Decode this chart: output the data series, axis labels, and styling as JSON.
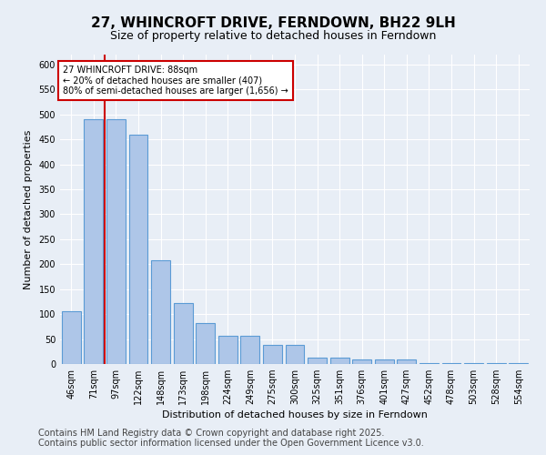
{
  "title": "27, WHINCROFT DRIVE, FERNDOWN, BH22 9LH",
  "subtitle": "Size of property relative to detached houses in Ferndown",
  "xlabel": "Distribution of detached houses by size in Ferndown",
  "ylabel": "Number of detached properties",
  "footer": "Contains HM Land Registry data © Crown copyright and database right 2025.\nContains public sector information licensed under the Open Government Licence v3.0.",
  "categories": [
    "46sqm",
    "71sqm",
    "97sqm",
    "122sqm",
    "148sqm",
    "173sqm",
    "198sqm",
    "224sqm",
    "249sqm",
    "275sqm",
    "300sqm",
    "325sqm",
    "351sqm",
    "376sqm",
    "401sqm",
    "427sqm",
    "452sqm",
    "478sqm",
    "503sqm",
    "528sqm",
    "554sqm"
  ],
  "values": [
    105,
    490,
    490,
    460,
    207,
    122,
    82,
    57,
    57,
    38,
    38,
    13,
    13,
    10,
    10,
    10,
    2,
    2,
    2,
    2,
    2
  ],
  "bar_color": "#aec6e8",
  "bar_edge_color": "#5b9bd5",
  "annotation_text_line1": "27 WHINCROFT DRIVE: 88sqm",
  "annotation_text_line2": "← 20% of detached houses are smaller (407)",
  "annotation_text_line3": "80% of semi-detached houses are larger (1,656) →",
  "annotation_box_facecolor": "#ffffff",
  "annotation_box_edgecolor": "#cc0000",
  "red_line_x": 1.5,
  "ylim": [
    0,
    620
  ],
  "yticks": [
    0,
    50,
    100,
    150,
    200,
    250,
    300,
    350,
    400,
    450,
    500,
    550,
    600
  ],
  "background_color": "#e8eef6",
  "grid_color": "#ffffff",
  "title_fontsize": 11,
  "subtitle_fontsize": 9,
  "axis_label_fontsize": 8,
  "tick_fontsize": 7,
  "footer_fontsize": 7,
  "annot_fontsize": 7
}
